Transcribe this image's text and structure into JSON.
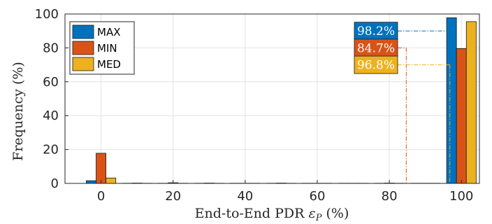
{
  "chart_data": {
    "type": "bar",
    "xlabel": "End-to-End PDR εP (%)",
    "xlabel_main": "End-to-End PDR ",
    "xlabel_symbol": "ε",
    "xlabel_subscript": "P",
    "xlabel_unit": " (%)",
    "ylabel": "Frequency  (%)",
    "xlim": [
      -10,
      105
    ],
    "ylim": [
      0,
      100
    ],
    "xticks": [
      0,
      20,
      40,
      60,
      80,
      100
    ],
    "yticks": [
      0,
      20,
      40,
      60,
      80,
      100
    ],
    "grid": true,
    "legend_position": "top-left",
    "bin_centers": [
      0,
      10,
      20,
      30,
      40,
      50,
      60,
      70,
      80,
      90,
      100
    ],
    "series": [
      {
        "name": "MAX",
        "color": "#0072bd",
        "values": [
          1.6,
          0.1,
          0.1,
          0.1,
          0.1,
          0.1,
          0.1,
          0.1,
          0.1,
          0.1,
          97.8
        ]
      },
      {
        "name": "MIN",
        "color": "#d95319",
        "values": [
          17.8,
          0.2,
          0.4,
          0.2,
          0.1,
          0.2,
          0.1,
          0.1,
          0.2,
          0.1,
          79.6
        ]
      },
      {
        "name": "MED",
        "color": "#edb120",
        "values": [
          3.2,
          0.1,
          0.1,
          0.1,
          0.1,
          0.1,
          0.1,
          0.1,
          0.1,
          0.1,
          95.5
        ]
      }
    ],
    "annotations": [
      {
        "series": "MAX",
        "text": "98.2%",
        "x": 98.2,
        "y": 90
      },
      {
        "series": "MIN",
        "text": "84.7%",
        "x": 84.7,
        "y": 80
      },
      {
        "series": "MED",
        "text": "96.8%",
        "x": 96.8,
        "y": 70
      }
    ]
  }
}
